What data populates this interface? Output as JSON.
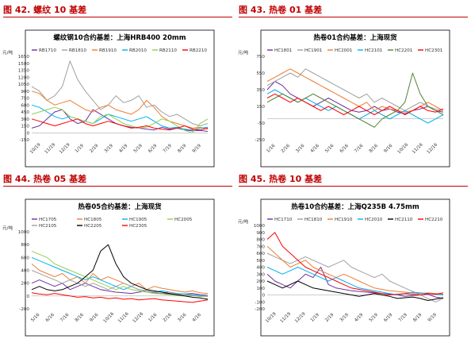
{
  "chart_data": [
    {
      "type": "line",
      "figure_label": "图 42. 螺纹 10 基差",
      "title": "螺纹钢10合约基差：上海HRB400 20mm",
      "ylabel": "元/吨",
      "ylim": [
        -150,
        1650
      ],
      "yticks": [
        "1650",
        "1500",
        "1350",
        "1200",
        "1050",
        "900",
        "750",
        "600",
        "450",
        "300",
        "150",
        "0",
        "-150"
      ],
      "xticks": [
        "10/19",
        "11/19",
        "12/19",
        "1/19",
        "2/19",
        "3/19",
        "4/19",
        "5/19",
        "6/19",
        "7/19",
        "8/19",
        "9/19"
      ],
      "series": [
        {
          "name": "RB1710",
          "color": "#7030a0",
          "values": [
            100,
            150,
            300,
            450,
            500,
            300,
            200,
            250,
            500,
            400,
            300,
            200,
            150,
            120,
            100,
            80,
            60,
            120,
            80,
            100,
            60,
            40,
            50,
            30
          ]
        },
        {
          "name": "RB1810",
          "color": "#a0a0a0",
          "values": [
            1000,
            900,
            700,
            800,
            1000,
            1550,
            1150,
            900,
            700,
            500,
            600,
            800,
            650,
            700,
            800,
            550,
            600,
            450,
            350,
            400,
            300,
            200,
            150,
            200
          ]
        },
        {
          "name": "RB1910",
          "color": "#ed7d31",
          "values": [
            900,
            850,
            700,
            600,
            650,
            700,
            600,
            500,
            450,
            550,
            600,
            500,
            450,
            400,
            500,
            700,
            550,
            350,
            250,
            200,
            150,
            100,
            120,
            80
          ]
        },
        {
          "name": "RB2010",
          "color": "#00b0f0",
          "values": [
            600,
            550,
            450,
            350,
            300,
            350,
            300,
            250,
            200,
            300,
            400,
            350,
            300,
            250,
            300,
            350,
            250,
            150,
            100,
            120,
            80,
            60,
            100,
            120
          ]
        },
        {
          "name": "RB2110",
          "color": "#92d050",
          "values": [
            400,
            450,
            500,
            550,
            500,
            350,
            300,
            250,
            200,
            350,
            400,
            300,
            200,
            150,
            100,
            120,
            200,
            300,
            250,
            150,
            50,
            0,
            200,
            300
          ]
        },
        {
          "name": "RB2210",
          "color": "#ff0000",
          "values": [
            300,
            250,
            200,
            150,
            200,
            250,
            300,
            200,
            150,
            200,
            250,
            200,
            150,
            100,
            120,
            150,
            100,
            80,
            60,
            100,
            150,
            80,
            60,
            100
          ]
        }
      ]
    },
    {
      "type": "line",
      "figure_label": "图 43. 热卷 01 基差",
      "title": "热卷01合约基差：上海现货",
      "ylabel": "元/吨",
      "ylim": [
        -250,
        750
      ],
      "yticks": [
        "750",
        "550",
        "350",
        "150",
        "-50",
        "-250"
      ],
      "xticks": [
        "1/16",
        "2/16",
        "3/16",
        "4/16",
        "5/16",
        "6/16",
        "7/16",
        "8/16",
        "9/16",
        "10/16",
        "11/16",
        "12/16"
      ],
      "series": [
        {
          "name": "HC1801",
          "color": "#7030a0",
          "values": [
            350,
            450,
            400,
            300,
            250,
            200,
            150,
            200,
            250,
            200,
            150,
            100,
            80,
            100,
            150,
            100,
            120,
            80,
            60,
            100,
            120,
            150,
            100,
            80
          ]
        },
        {
          "name": "HC1901",
          "color": "#a0a0a0",
          "values": [
            400,
            450,
            500,
            550,
            500,
            600,
            550,
            500,
            450,
            400,
            350,
            300,
            250,
            300,
            200,
            250,
            200,
            150,
            100,
            150,
            200,
            150,
            120,
            100
          ]
        },
        {
          "name": "HC2001",
          "color": "#ed7d31",
          "values": [
            450,
            500,
            550,
            600,
            550,
            500,
            450,
            400,
            350,
            300,
            250,
            200,
            150,
            200,
            100,
            150,
            120,
            100,
            80,
            100,
            150,
            200,
            150,
            100
          ]
        },
        {
          "name": "HC2101",
          "color": "#00b0f0",
          "values": [
            300,
            350,
            300,
            250,
            200,
            250,
            200,
            150,
            100,
            150,
            100,
            50,
            0,
            50,
            100,
            50,
            0,
            50,
            100,
            50,
            0,
            -50,
            0,
            50
          ]
        },
        {
          "name": "HC2201",
          "color": "#548235",
          "values": [
            200,
            250,
            300,
            250,
            200,
            250,
            300,
            250,
            200,
            150,
            100,
            50,
            0,
            -50,
            -100,
            0,
            50,
            100,
            200,
            550,
            300,
            150,
            100,
            50
          ]
        },
        {
          "name": "HC2301",
          "color": "#ff0000",
          "values": [
            250,
            300,
            250,
            200,
            250,
            200,
            150,
            100,
            150,
            100,
            50,
            100,
            150,
            100,
            50,
            100,
            150,
            100,
            50,
            100,
            150,
            100,
            80,
            120
          ]
        }
      ]
    },
    {
      "type": "line",
      "figure_label": "图 44. 热卷 05 基差",
      "title": "热卷05合约基差：上海现货",
      "ylabel": "元/吨",
      "ylim": [
        -200,
        1000
      ],
      "yticks": [
        "1000",
        "800",
        "600",
        "400",
        "200",
        "0",
        "-200"
      ],
      "xticks": [
        "5/16",
        "6/16",
        "7/16",
        "8/16",
        "9/16",
        "10/16",
        "11/16",
        "12/16",
        "1/16",
        "2/16",
        "3/16",
        "4/16"
      ],
      "series": [
        {
          "name": "HC1705",
          "color": "#7030a0",
          "values": [
            200,
            250,
            200,
            150,
            200,
            100,
            150,
            200,
            150,
            100,
            80,
            60,
            50,
            40,
            60,
            80,
            50,
            40,
            30,
            20,
            30,
            40,
            20,
            10
          ]
        },
        {
          "name": "HC1805",
          "color": "#ed7d31",
          "values": [
            500,
            400,
            350,
            300,
            350,
            250,
            300,
            200,
            350,
            250,
            300,
            250,
            200,
            150,
            200,
            100,
            150,
            120,
            100,
            80,
            60,
            80,
            50,
            40
          ]
        },
        {
          "name": "HC1905",
          "color": "#00b0f0",
          "values": [
            600,
            550,
            500,
            450,
            400,
            350,
            300,
            250,
            300,
            250,
            200,
            150,
            100,
            150,
            100,
            80,
            60,
            80,
            60,
            40,
            30,
            20,
            10,
            0
          ]
        },
        {
          "name": "HC2005",
          "color": "#92d050",
          "values": [
            700,
            650,
            600,
            500,
            450,
            400,
            350,
            300,
            250,
            200,
            150,
            100,
            150,
            100,
            80,
            60,
            40,
            30,
            20,
            10,
            0,
            10,
            -10,
            0
          ]
        },
        {
          "name": "HC2105",
          "color": "#a0a0a0",
          "values": [
            400,
            350,
            300,
            250,
            200,
            250,
            200,
            150,
            200,
            150,
            100,
            150,
            200,
            150,
            100,
            80,
            60,
            40,
            60,
            30,
            20,
            10,
            0,
            -10
          ]
        },
        {
          "name": "HC2205",
          "color": "#000000",
          "values": [
            100,
            150,
            100,
            80,
            100,
            150,
            200,
            300,
            400,
            700,
            800,
            500,
            300,
            200,
            150,
            100,
            80,
            60,
            40,
            20,
            0,
            -20,
            -30,
            -50
          ]
        },
        {
          "name": "HC2305",
          "color": "#ff0000",
          "values": [
            50,
            30,
            20,
            40,
            20,
            0,
            -20,
            -10,
            -30,
            -20,
            -40,
            -30,
            -50,
            -40,
            -60,
            -50,
            -40,
            -60,
            -70,
            -80,
            -90,
            -100,
            -80,
            -60
          ]
        }
      ]
    },
    {
      "type": "line",
      "figure_label": "图 45. 热卷 10 基差",
      "title": "热卷10合约基差：上海Q235B 4.75mm",
      "ylabel": "元/吨",
      "ylim": [
        -200,
        1000
      ],
      "yticks": [
        "1000",
        "900",
        "800",
        "700",
        "600",
        "500",
        "400",
        "300",
        "200",
        "100",
        "0",
        "-100",
        "-200"
      ],
      "xticks": [
        "10/19",
        "11/19",
        "12/19",
        "1/19",
        "2/19",
        "3/19",
        "4/19",
        "5/19",
        "6/19",
        "7/19",
        "8/19",
        "9/19"
      ],
      "series": [
        {
          "name": "HC1710",
          "color": "#7030a0",
          "values": [
            300,
            200,
            150,
            100,
            200,
            300,
            250,
            400,
            150,
            100,
            80,
            60,
            50,
            40,
            30,
            20,
            10,
            0,
            -20,
            -10,
            0,
            10,
            -30,
            -50
          ]
        },
        {
          "name": "HC1810",
          "color": "#a0a0a0",
          "values": [
            600,
            550,
            500,
            450,
            500,
            550,
            500,
            450,
            400,
            450,
            500,
            400,
            350,
            300,
            250,
            300,
            200,
            150,
            100,
            50,
            0,
            -50,
            -100,
            -50
          ]
        },
        {
          "name": "HC1910",
          "color": "#ed7d31",
          "values": [
            700,
            600,
            500,
            400,
            450,
            500,
            400,
            350,
            300,
            250,
            300,
            250,
            200,
            150,
            100,
            80,
            60,
            50,
            40,
            30,
            20,
            30,
            20,
            10
          ]
        },
        {
          "name": "HC2010",
          "color": "#00b0f0",
          "values": [
            400,
            350,
            300,
            350,
            400,
            350,
            300,
            250,
            200,
            250,
            200,
            150,
            100,
            80,
            60,
            40,
            20,
            0,
            20,
            40,
            30,
            20,
            10,
            0
          ]
        },
        {
          "name": "HC2110",
          "color": "#000000",
          "values": [
            200,
            150,
            100,
            150,
            200,
            150,
            100,
            80,
            60,
            40,
            20,
            0,
            -20,
            0,
            20,
            0,
            -20,
            -50,
            -40,
            -30,
            -50,
            -80,
            -60,
            -40
          ]
        },
        {
          "name": "HC2210",
          "color": "#ff0000",
          "values": [
            800,
            900,
            700,
            600,
            500,
            400,
            350,
            300,
            250,
            200,
            150,
            100,
            80,
            60,
            40,
            20,
            0,
            10,
            20,
            10,
            0,
            20,
            10,
            30
          ]
        }
      ]
    }
  ]
}
